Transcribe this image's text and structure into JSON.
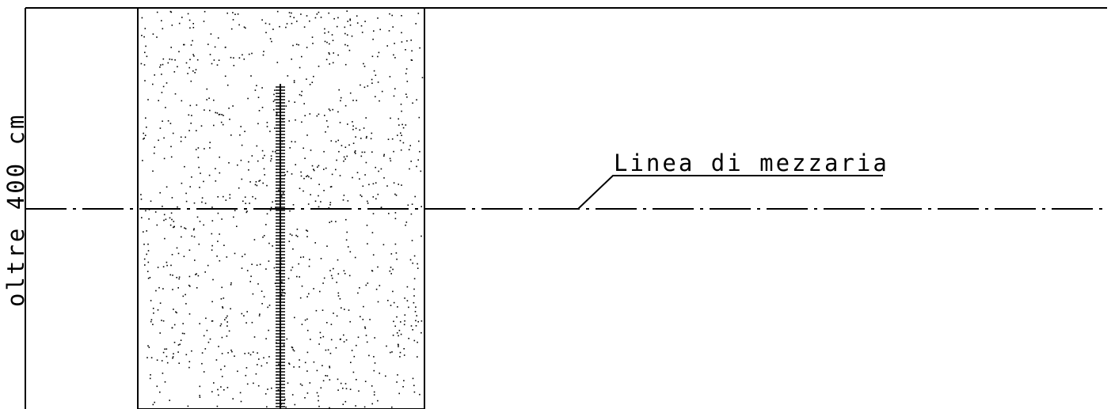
{
  "drawing": {
    "centerline_label": "Linea di mezzaria",
    "side_label": "oltre 400 cm",
    "ink_color": "#000000",
    "background_color": "#ffffff"
  }
}
